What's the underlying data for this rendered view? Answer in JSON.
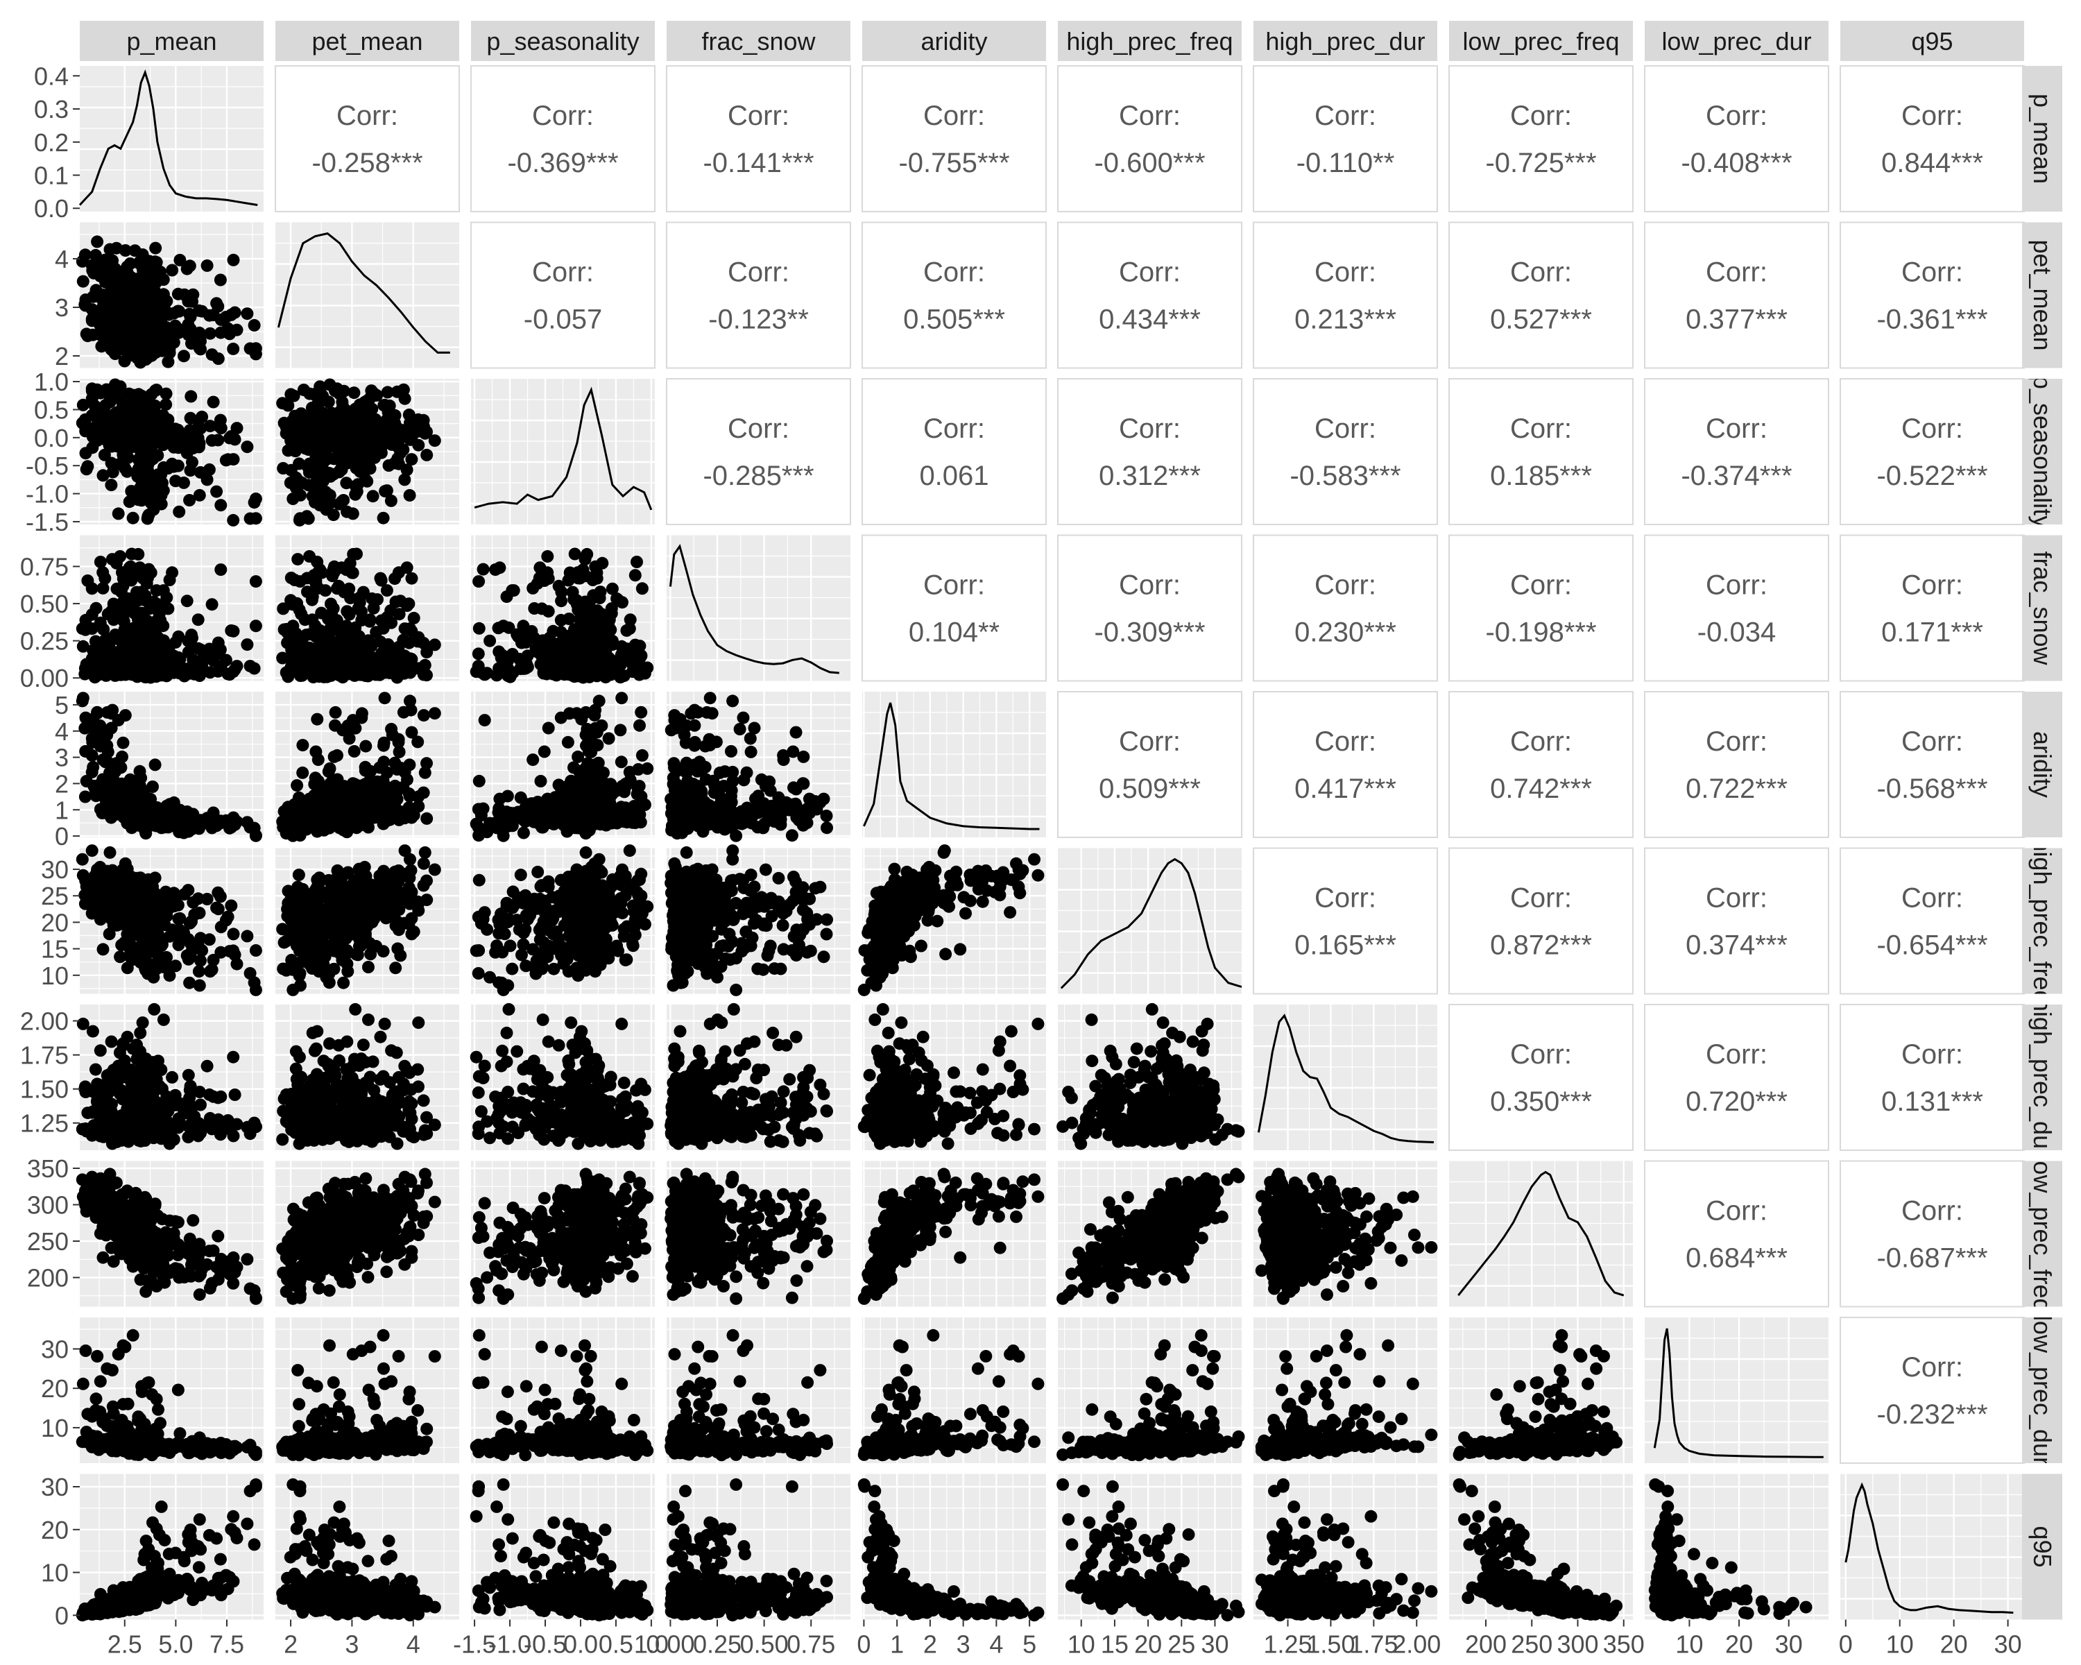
{
  "chart_data": {
    "type": "scatter",
    "kind": "pairs-matrix",
    "variables": [
      "p_mean",
      "pet_mean",
      "p_seasonality",
      "frac_snow",
      "aridity",
      "high_prec_freq",
      "high_prec_dur",
      "low_prec_freq",
      "low_prec_dur",
      "q95"
    ],
    "column_strip_labels": [
      "p_mean",
      "pet_mean",
      "p_seasonality",
      "frac_snow",
      "aridity",
      "high_prec_freq",
      "high_prec_dur",
      "low_prec_freq",
      "low_prec_dur",
      "q95"
    ],
    "row_strip_labels": [
      "p_mean",
      "pet_mean",
      "p_seasonality",
      "frac_snow",
      "aridity",
      "high_prec_freq",
      "high_prec_dur",
      "low_prec_freq",
      "low_prec_dur",
      "q95"
    ],
    "corr_label": "Corr:",
    "correlations": [
      {
        "row": 0,
        "col": 1,
        "text": "-0.258***"
      },
      {
        "row": 0,
        "col": 2,
        "text": "-0.369***"
      },
      {
        "row": 0,
        "col": 3,
        "text": "-0.141***"
      },
      {
        "row": 0,
        "col": 4,
        "text": "-0.755***"
      },
      {
        "row": 0,
        "col": 5,
        "text": "-0.600***"
      },
      {
        "row": 0,
        "col": 6,
        "text": "-0.110**"
      },
      {
        "row": 0,
        "col": 7,
        "text": "-0.725***"
      },
      {
        "row": 0,
        "col": 8,
        "text": "-0.408***"
      },
      {
        "row": 0,
        "col": 9,
        "text": "0.844***"
      },
      {
        "row": 1,
        "col": 2,
        "text": "-0.057"
      },
      {
        "row": 1,
        "col": 3,
        "text": "-0.123**"
      },
      {
        "row": 1,
        "col": 4,
        "text": "0.505***"
      },
      {
        "row": 1,
        "col": 5,
        "text": "0.434***"
      },
      {
        "row": 1,
        "col": 6,
        "text": "0.213***"
      },
      {
        "row": 1,
        "col": 7,
        "text": "0.527***"
      },
      {
        "row": 1,
        "col": 8,
        "text": "0.377***"
      },
      {
        "row": 1,
        "col": 9,
        "text": "-0.361***"
      },
      {
        "row": 2,
        "col": 3,
        "text": "-0.285***"
      },
      {
        "row": 2,
        "col": 4,
        "text": "0.061"
      },
      {
        "row": 2,
        "col": 5,
        "text": "0.312***"
      },
      {
        "row": 2,
        "col": 6,
        "text": "-0.583***"
      },
      {
        "row": 2,
        "col": 7,
        "text": "0.185***"
      },
      {
        "row": 2,
        "col": 8,
        "text": "-0.374***"
      },
      {
        "row": 2,
        "col": 9,
        "text": "-0.522***"
      },
      {
        "row": 3,
        "col": 4,
        "text": "0.104**"
      },
      {
        "row": 3,
        "col": 5,
        "text": "-0.309***"
      },
      {
        "row": 3,
        "col": 6,
        "text": "0.230***"
      },
      {
        "row": 3,
        "col": 7,
        "text": "-0.198***"
      },
      {
        "row": 3,
        "col": 8,
        "text": "-0.034"
      },
      {
        "row": 3,
        "col": 9,
        "text": "0.171***"
      },
      {
        "row": 4,
        "col": 5,
        "text": "0.509***"
      },
      {
        "row": 4,
        "col": 6,
        "text": "0.417***"
      },
      {
        "row": 4,
        "col": 7,
        "text": "0.742***"
      },
      {
        "row": 4,
        "col": 8,
        "text": "0.722***"
      },
      {
        "row": 4,
        "col": 9,
        "text": "-0.568***"
      },
      {
        "row": 5,
        "col": 6,
        "text": "0.165***"
      },
      {
        "row": 5,
        "col": 7,
        "text": "0.872***"
      },
      {
        "row": 5,
        "col": 8,
        "text": "0.374***"
      },
      {
        "row": 5,
        "col": 9,
        "text": "-0.654***"
      },
      {
        "row": 6,
        "col": 7,
        "text": "0.350***"
      },
      {
        "row": 6,
        "col": 8,
        "text": "0.720***"
      },
      {
        "row": 6,
        "col": 9,
        "text": "0.131***"
      },
      {
        "row": 7,
        "col": 8,
        "text": "0.684***"
      },
      {
        "row": 7,
        "col": 9,
        "text": "-0.687***"
      },
      {
        "row": 8,
        "col": 9,
        "text": "-0.232***"
      }
    ],
    "x_axes": [
      {
        "range": [
          0.3,
          9.3
        ],
        "ticks": [
          2.5,
          5.0,
          7.5
        ],
        "labels": [
          "2.5",
          "5.0",
          "7.5"
        ]
      },
      {
        "range": [
          1.75,
          4.75
        ],
        "ticks": [
          2,
          3,
          4
        ],
        "labels": [
          "2",
          "3",
          "4"
        ]
      },
      {
        "range": [
          -1.55,
          1.05
        ],
        "ticks": [
          -1.5,
          -1.0,
          -0.5,
          0.0,
          0.5,
          1.0
        ],
        "labels": [
          "-1.5",
          "-1.0",
          "-0.5",
          "0.0",
          "0.5",
          "1.0"
        ]
      },
      {
        "range": [
          -0.02,
          0.96
        ],
        "ticks": [
          0.0,
          0.25,
          0.5,
          0.75
        ],
        "labels": [
          "0.00",
          "0.25",
          "0.50",
          "0.75"
        ]
      },
      {
        "range": [
          -0.05,
          5.5
        ],
        "ticks": [
          0,
          1,
          2,
          3,
          4,
          5
        ],
        "labels": [
          "0",
          "1",
          "2",
          "3",
          "4",
          "5"
        ]
      },
      {
        "range": [
          6.5,
          34
        ],
        "ticks": [
          10,
          15,
          20,
          25,
          30
        ],
        "labels": [
          "10",
          "15",
          "20",
          "25",
          "30"
        ]
      },
      {
        "range": [
          1.05,
          2.12
        ],
        "ticks": [
          1.25,
          1.5,
          1.75,
          2.0
        ],
        "labels": [
          "1.25",
          "1.50",
          "1.75",
          "2.00"
        ]
      },
      {
        "range": [
          160,
          360
        ],
        "ticks": [
          200,
          250,
          300,
          350
        ],
        "labels": [
          "200",
          "250",
          "300",
          "350"
        ]
      },
      {
        "range": [
          1,
          38
        ],
        "ticks": [
          10,
          20,
          30
        ],
        "labels": [
          "10",
          "20",
          "30"
        ]
      },
      {
        "range": [
          -1,
          33
        ],
        "ticks": [
          0,
          10,
          20,
          30
        ],
        "labels": [
          "0",
          "10",
          "20",
          "30"
        ]
      }
    ],
    "y_axes": [
      {
        "range": [
          -0.01,
          0.43
        ],
        "ticks": [
          0.0,
          0.1,
          0.2,
          0.3,
          0.4
        ],
        "labels": [
          "0.0",
          "0.1",
          "0.2",
          "0.3",
          "0.4"
        ]
      },
      {
        "range": [
          1.75,
          4.75
        ],
        "ticks": [
          2,
          3,
          4
        ],
        "labels": [
          "2",
          "3",
          "4"
        ]
      },
      {
        "range": [
          -1.55,
          1.05
        ],
        "ticks": [
          -1.5,
          -1.0,
          -0.5,
          0.0,
          0.5,
          1.0
        ],
        "labels": [
          "-1.5",
          "-1.0",
          "-0.5",
          "0.0",
          "0.5",
          "1.0"
        ]
      },
      {
        "range": [
          -0.02,
          0.96
        ],
        "ticks": [
          0.0,
          0.25,
          0.5,
          0.75
        ],
        "labels": [
          "0.00",
          "0.25",
          "0.50",
          "0.75"
        ]
      },
      {
        "range": [
          -0.05,
          5.5
        ],
        "ticks": [
          0,
          1,
          2,
          3,
          4,
          5
        ],
        "labels": [
          "0",
          "1",
          "2",
          "3",
          "4",
          "5"
        ]
      },
      {
        "range": [
          6.5,
          34
        ],
        "ticks": [
          10,
          15,
          20,
          25,
          30
        ],
        "labels": [
          "10",
          "15",
          "20",
          "25",
          "30"
        ]
      },
      {
        "range": [
          1.05,
          2.12
        ],
        "ticks": [
          1.25,
          1.5,
          1.75,
          2.0
        ],
        "labels": [
          "1.25",
          "1.50",
          "1.75",
          "2.00"
        ]
      },
      {
        "range": [
          160,
          360
        ],
        "ticks": [
          200,
          250,
          300,
          350
        ],
        "labels": [
          "200",
          "250",
          "300",
          "350"
        ]
      },
      {
        "range": [
          1,
          38
        ],
        "ticks": [
          10,
          20,
          30
        ],
        "labels": [
          "10",
          "20",
          "30"
        ]
      },
      {
        "range": [
          -1,
          33
        ],
        "ticks": [
          0,
          10,
          20,
          30
        ],
        "labels": [
          "0",
          "10",
          "20",
          "30"
        ]
      }
    ],
    "densities": [
      {
        "x": [
          0.3,
          0.9,
          1.3,
          1.7,
          2.0,
          2.3,
          2.6,
          2.9,
          3.1,
          3.3,
          3.5,
          3.7,
          3.9,
          4.1,
          4.4,
          4.7,
          5.0,
          5.5,
          6.0,
          6.5,
          7.0,
          7.5,
          8.0,
          8.5,
          9.0
        ],
        "y": [
          0.01,
          0.05,
          0.12,
          0.18,
          0.19,
          0.18,
          0.22,
          0.26,
          0.31,
          0.38,
          0.41,
          0.37,
          0.3,
          0.2,
          0.12,
          0.07,
          0.045,
          0.035,
          0.03,
          0.03,
          0.028,
          0.025,
          0.02,
          0.015,
          0.01
        ]
      },
      {
        "x": [
          1.8,
          2.0,
          2.2,
          2.4,
          2.6,
          2.8,
          3.0,
          3.2,
          3.4,
          3.6,
          3.8,
          4.0,
          4.2,
          4.4,
          4.6
        ],
        "y": [
          0.25,
          0.6,
          0.85,
          0.9,
          0.92,
          0.85,
          0.72,
          0.62,
          0.55,
          0.46,
          0.36,
          0.25,
          0.15,
          0.07,
          0.07
        ]
      },
      {
        "x": [
          -1.5,
          -1.3,
          -1.1,
          -0.9,
          -0.75,
          -0.6,
          -0.4,
          -0.2,
          -0.05,
          0.05,
          0.15,
          0.3,
          0.45,
          0.6,
          0.75,
          0.9,
          1.0
        ],
        "y": [
          0.15,
          0.2,
          0.22,
          0.2,
          0.32,
          0.25,
          0.3,
          0.55,
          1.0,
          1.5,
          1.7,
          1.1,
          0.45,
          0.3,
          0.42,
          0.35,
          0.12
        ]
      },
      {
        "x": [
          0.0,
          0.02,
          0.05,
          0.08,
          0.12,
          0.16,
          0.2,
          0.25,
          0.3,
          0.35,
          0.4,
          0.45,
          0.5,
          0.55,
          0.6,
          0.65,
          0.7,
          0.75,
          0.8,
          0.85,
          0.9
        ],
        "y": [
          2.2,
          3.0,
          3.2,
          2.7,
          2.0,
          1.5,
          1.1,
          0.75,
          0.6,
          0.5,
          0.42,
          0.35,
          0.3,
          0.28,
          0.3,
          0.38,
          0.42,
          0.32,
          0.18,
          0.08,
          0.06
        ]
      },
      {
        "x": [
          0.0,
          0.3,
          0.5,
          0.7,
          0.8,
          0.95,
          1.1,
          1.3,
          1.6,
          2.0,
          2.5,
          3.0,
          3.5,
          4.0,
          4.5,
          5.0,
          5.3
        ],
        "y": [
          0.1,
          0.5,
          1.3,
          2.1,
          2.3,
          1.9,
          0.9,
          0.55,
          0.42,
          0.25,
          0.15,
          0.1,
          0.08,
          0.07,
          0.06,
          0.05,
          0.05
        ]
      },
      {
        "x": [
          7,
          9,
          11,
          13,
          15,
          17,
          19,
          21,
          22,
          23,
          24,
          25,
          26,
          27,
          28,
          29,
          30,
          32,
          34
        ],
        "y": [
          0.0,
          0.01,
          0.025,
          0.035,
          0.04,
          0.045,
          0.055,
          0.075,
          0.085,
          0.092,
          0.095,
          0.092,
          0.085,
          0.07,
          0.05,
          0.03,
          0.015,
          0.004,
          0.001
        ]
      },
      {
        "x": [
          1.08,
          1.12,
          1.16,
          1.2,
          1.23,
          1.26,
          1.3,
          1.34,
          1.38,
          1.42,
          1.46,
          1.5,
          1.55,
          1.6,
          1.65,
          1.7,
          1.75,
          1.8,
          1.85,
          1.9,
          1.95,
          2.0,
          2.1
        ],
        "y": [
          0.4,
          1.6,
          3.0,
          4.0,
          4.2,
          3.8,
          3.0,
          2.4,
          2.2,
          2.15,
          1.7,
          1.2,
          1.0,
          0.9,
          0.75,
          0.6,
          0.45,
          0.35,
          0.22,
          0.15,
          0.12,
          0.1,
          0.08
        ]
      },
      {
        "x": [
          170,
          180,
          190,
          200,
          210,
          220,
          230,
          240,
          250,
          260,
          265,
          270,
          280,
          290,
          300,
          310,
          320,
          330,
          340,
          350
        ],
        "y": [
          0.0004,
          0.0012,
          0.002,
          0.0028,
          0.0036,
          0.0045,
          0.0055,
          0.0068,
          0.008,
          0.0088,
          0.009,
          0.0088,
          0.0072,
          0.0058,
          0.0055,
          0.0045,
          0.003,
          0.0014,
          0.0006,
          0.0004
        ]
      },
      {
        "x": [
          3,
          4,
          5,
          5.5,
          6,
          6.5,
          7,
          7.5,
          8,
          9,
          10,
          12,
          15,
          20,
          25,
          30,
          35,
          37
        ],
        "y": [
          0.05,
          0.2,
          0.62,
          0.68,
          0.55,
          0.32,
          0.18,
          0.12,
          0.08,
          0.05,
          0.035,
          0.02,
          0.012,
          0.008,
          0.005,
          0.004,
          0.003,
          0.003
        ]
      },
      {
        "x": [
          0,
          0.5,
          1,
          1.5,
          2,
          2.5,
          3,
          3.5,
          4,
          5,
          6,
          7,
          8,
          9,
          10,
          11,
          12,
          13,
          15,
          17,
          19,
          21,
          23,
          25,
          27,
          29,
          31
        ],
        "y": [
          0.08,
          0.1,
          0.13,
          0.16,
          0.18,
          0.19,
          0.2,
          0.19,
          0.17,
          0.14,
          0.1,
          0.07,
          0.04,
          0.02,
          0.012,
          0.008,
          0.006,
          0.006,
          0.01,
          0.012,
          0.008,
          0.006,
          0.005,
          0.004,
          0.003,
          0.003,
          0.002
        ]
      }
    ],
    "grid": true,
    "panel_background": "#EBEBEB",
    "strip_background": "#D9D9D9",
    "point_color": "#000000",
    "corr_text_color": "#595959",
    "axis_text_color": "#4D4D4D"
  }
}
